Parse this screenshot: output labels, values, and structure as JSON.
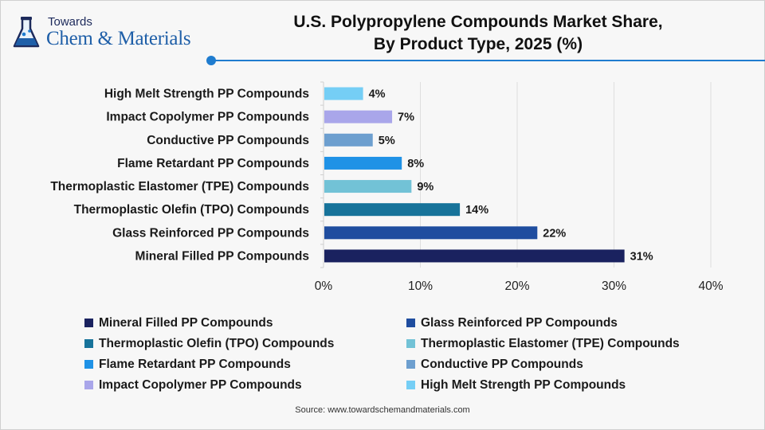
{
  "brand": {
    "line1": "Towards",
    "line2": "Chem & Materials"
  },
  "colors": {
    "accent": "#1f7ccf",
    "brand": "#1f5fa8"
  },
  "chart_data": {
    "type": "bar",
    "orientation": "horizontal",
    "title": "U.S. Polypropylene Compounds Market Share,",
    "subtitle": "By Product Type, 2025 (%)",
    "categories": [
      "High Melt Strength PP Compounds",
      "Impact Copolymer PP Compounds",
      "Conductive PP Compounds",
      "Flame Retardant PP Compounds",
      "Thermoplastic Elastomer (TPE) Compounds",
      "Thermoplastic Olefin (TPO) Compounds",
      "Glass Reinforced PP Compounds",
      "Mineral Filled PP Compounds"
    ],
    "values": [
      4,
      7,
      5,
      8,
      9,
      14,
      22,
      31
    ],
    "data_labels": [
      "4%",
      "7%",
      "5%",
      "8%",
      "9%",
      "14%",
      "22%",
      "31%"
    ],
    "colors": [
      "#75cef5",
      "#a9a6ea",
      "#6d9fcf",
      "#1f92e6",
      "#72c2d6",
      "#17739a",
      "#1f4d9f",
      "#1a225f"
    ],
    "xlim": [
      0,
      40
    ],
    "xticks": [
      "0%",
      "10%",
      "20%",
      "30%",
      "40%"
    ],
    "grid": true,
    "legend_position": "bottom",
    "legend": [
      {
        "label": "Mineral Filled PP Compounds",
        "color": "#1a225f"
      },
      {
        "label": "Glass Reinforced PP Compounds",
        "color": "#1f4d9f"
      },
      {
        "label": "Thermoplastic Olefin (TPO) Compounds",
        "color": "#17739a"
      },
      {
        "label": "Thermoplastic Elastomer (TPE) Compounds",
        "color": "#72c2d6"
      },
      {
        "label": "Flame Retardant PP Compounds",
        "color": "#1f92e6"
      },
      {
        "label": "Conductive PP Compounds",
        "color": "#6d9fcf"
      },
      {
        "label": "Impact Copolymer PP Compounds",
        "color": "#a9a6ea"
      },
      {
        "label": "High Melt Strength PP Compounds",
        "color": "#75cef5"
      }
    ]
  },
  "source": "Source: www.towardschemandmaterials.com"
}
